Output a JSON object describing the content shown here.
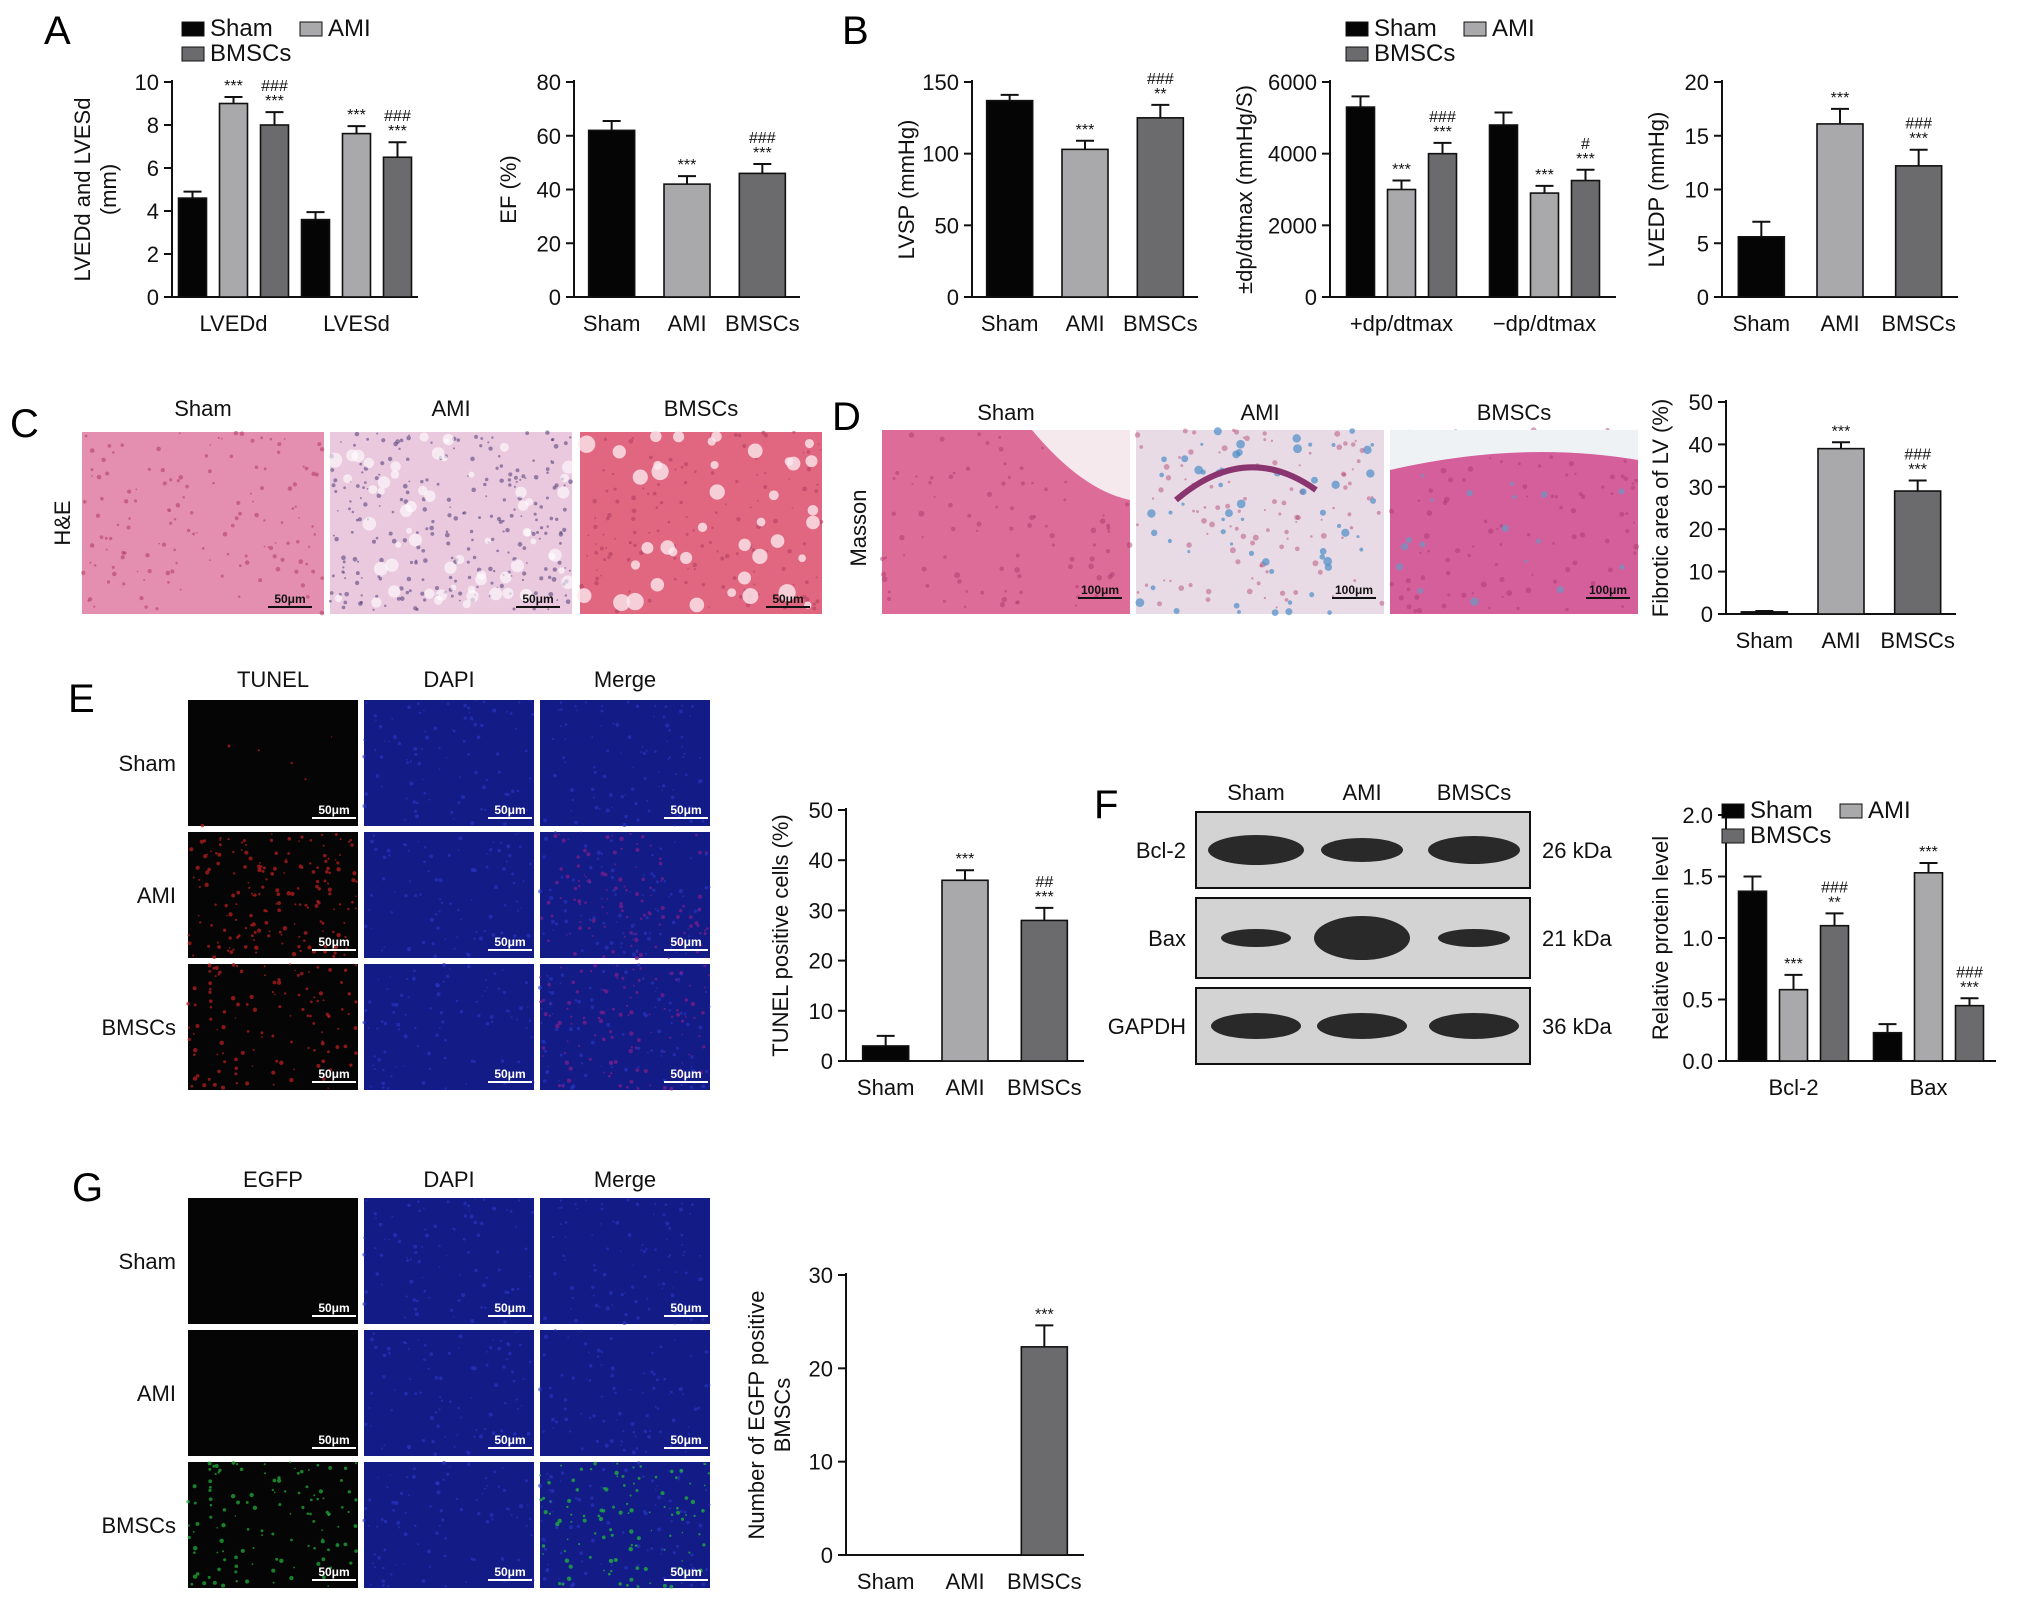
{
  "figure": {
    "groups": [
      "Sham",
      "AMI",
      "BMSCs"
    ],
    "colors": {
      "Sham": "#050505",
      "AMI": "#a9a9ab",
      "BMSCs": "#6b6b6d"
    },
    "photo_colors": {
      "he_sham": "#e58fb0",
      "he_ami": "#eac9de",
      "he_bmscs": "#e0677f",
      "masson_sham": "#de6c99",
      "masson_ami": "#e9dbe6",
      "masson_bmscs": "#d45f9b",
      "fluor_black": "#050505",
      "dapi": "#131b86",
      "tunel_red": "#c21f1f",
      "merge_mag": "#7b1d8a",
      "egfp_green": "#22b53b"
    },
    "panels": {
      "A": {
        "letter": "A"
      },
      "B": {
        "letter": "B"
      },
      "C": {
        "letter": "C",
        "stain": "H&E",
        "columns": [
          "Sham",
          "AMI",
          "BMSCs"
        ],
        "scale": "50μm"
      },
      "D": {
        "letter": "D",
        "stain": "Masson",
        "columns": [
          "Sham",
          "AMI",
          "BMSCs"
        ],
        "scale": "100μm"
      },
      "E": {
        "letter": "E",
        "columns": [
          "TUNEL",
          "DAPI",
          "Merge"
        ],
        "rows": [
          "Sham",
          "AMI",
          "BMSCs"
        ],
        "scale": "50μm"
      },
      "F": {
        "letter": "F",
        "lanes": [
          "Sham",
          "AMI",
          "BMSCs"
        ],
        "proteins": [
          "Bcl-2",
          "Bax",
          "GAPDH"
        ],
        "sizes": [
          "26 kDa",
          "21 kDa",
          "36 kDa"
        ]
      },
      "G": {
        "letter": "G",
        "columns": [
          "EGFP",
          "DAPI",
          "Merge"
        ],
        "rows": [
          "Sham",
          "AMI",
          "BMSCs"
        ],
        "scale": "50μm"
      }
    }
  },
  "chart_data": [
    {
      "id": "A1",
      "type": "bar",
      "categories": [
        "LVEDd",
        "LVESd"
      ],
      "ylabel": "LVEDd and LVESd\n(mm)",
      "ylim": [
        0,
        10
      ],
      "yticks": [
        0,
        2,
        4,
        6,
        8,
        10
      ],
      "legend": "top",
      "series": [
        {
          "name": "Sham",
          "values": [
            4.6,
            3.6
          ],
          "errors": [
            0.3,
            0.35
          ],
          "marks": [
            "",
            ""
          ]
        },
        {
          "name": "AMI",
          "values": [
            9.0,
            7.6
          ],
          "errors": [
            0.3,
            0.35
          ],
          "marks": [
            "***",
            "***"
          ]
        },
        {
          "name": "BMSCs",
          "values": [
            8.0,
            6.5
          ],
          "errors": [
            0.6,
            0.7
          ],
          "marks": [
            "###\n***",
            "###\n***"
          ]
        }
      ]
    },
    {
      "id": "A2",
      "type": "bar",
      "categories": [
        "Sham",
        "AMI",
        "BMSCs"
      ],
      "ylabel": "EF (%)",
      "ylim": [
        0,
        80
      ],
      "yticks": [
        0,
        20,
        40,
        60,
        80
      ],
      "values": [
        62,
        42,
        46
      ],
      "errors": [
        3.5,
        3,
        3.5
      ],
      "marks": [
        "",
        "***",
        "###\n***"
      ]
    },
    {
      "id": "B1",
      "type": "bar",
      "categories": [
        "Sham",
        "AMI",
        "BMSCs"
      ],
      "ylabel": "LVSP (mmHg)",
      "ylim": [
        0,
        150
      ],
      "yticks": [
        0,
        50,
        100,
        150
      ],
      "values": [
        137,
        103,
        125
      ],
      "errors": [
        4,
        6,
        9
      ],
      "marks": [
        "",
        "***",
        "###\n**"
      ]
    },
    {
      "id": "B2",
      "type": "bar",
      "categories": [
        "+dp/dtmax",
        "−dp/dtmax"
      ],
      "ylabel": "±dp/dtmax (mmHg/S)",
      "ylim": [
        0,
        6000
      ],
      "yticks": [
        0,
        2000,
        4000,
        6000
      ],
      "legend": "top",
      "series": [
        {
          "name": "Sham",
          "values": [
            5300,
            4800
          ],
          "errors": [
            300,
            350
          ],
          "marks": [
            "",
            ""
          ]
        },
        {
          "name": "AMI",
          "values": [
            3000,
            2900
          ],
          "errors": [
            250,
            200
          ],
          "marks": [
            "***",
            "***"
          ]
        },
        {
          "name": "BMSCs",
          "values": [
            4000,
            3250
          ],
          "errors": [
            300,
            300
          ],
          "marks": [
            "###\n***",
            "#\n***"
          ]
        }
      ]
    },
    {
      "id": "B3",
      "type": "bar",
      "categories": [
        "Sham",
        "AMI",
        "BMSCs"
      ],
      "ylabel": "LVEDP (mmHg)",
      "ylim": [
        0,
        20
      ],
      "yticks": [
        0,
        5,
        10,
        15,
        20
      ],
      "values": [
        5.6,
        16.1,
        12.2
      ],
      "errors": [
        1.4,
        1.4,
        1.5
      ],
      "marks": [
        "",
        "***",
        "###\n***"
      ]
    },
    {
      "id": "D4",
      "type": "bar",
      "categories": [
        "Sham",
        "AMI",
        "BMSCs"
      ],
      "ylabel": "Fibrotic area of LV (%)",
      "ylim": [
        0,
        50
      ],
      "yticks": [
        0,
        10,
        20,
        30,
        40,
        50
      ],
      "values": [
        0.5,
        39,
        29
      ],
      "errors": [
        0.2,
        1.5,
        2.5
      ],
      "marks": [
        "",
        "***",
        "###\n***"
      ]
    },
    {
      "id": "E4",
      "type": "bar",
      "categories": [
        "Sham",
        "AMI",
        "BMSCs"
      ],
      "ylabel": "TUNEL positive cells (%)",
      "ylim": [
        0,
        50
      ],
      "yticks": [
        0,
        10,
        20,
        30,
        40,
        50
      ],
      "values": [
        3,
        36,
        28
      ],
      "errors": [
        2,
        2,
        2.5
      ],
      "marks": [
        "",
        "***",
        "##\n***"
      ]
    },
    {
      "id": "F4",
      "type": "bar",
      "categories": [
        "Bcl-2",
        "Bax"
      ],
      "ylabel": "Relative protein level",
      "ylim": [
        0,
        2.0
      ],
      "yticks": [
        "0.0",
        "0.5",
        "1.0",
        "1.5",
        "2.0"
      ],
      "legend": "top",
      "series": [
        {
          "name": "Sham",
          "values": [
            1.38,
            0.23
          ],
          "errors": [
            0.12,
            0.07
          ],
          "marks": [
            "",
            ""
          ]
        },
        {
          "name": "AMI",
          "values": [
            0.58,
            1.53
          ],
          "errors": [
            0.12,
            0.08
          ],
          "marks": [
            "***",
            "***"
          ]
        },
        {
          "name": "BMSCs",
          "values": [
            1.1,
            0.45
          ],
          "errors": [
            0.1,
            0.06
          ],
          "marks": [
            "###\n**",
            "###\n***"
          ]
        }
      ]
    },
    {
      "id": "G4",
      "type": "bar",
      "categories": [
        "Sham",
        "AMI",
        "BMSCs"
      ],
      "ylabel": "Number of EGFP positive\nBMSCs",
      "ylim": [
        0,
        30
      ],
      "yticks": [
        0,
        10,
        20,
        30
      ],
      "values": [
        0,
        0,
        22.3
      ],
      "errors": [
        0,
        0,
        2.3
      ],
      "marks": [
        "",
        "",
        "***"
      ]
    }
  ]
}
